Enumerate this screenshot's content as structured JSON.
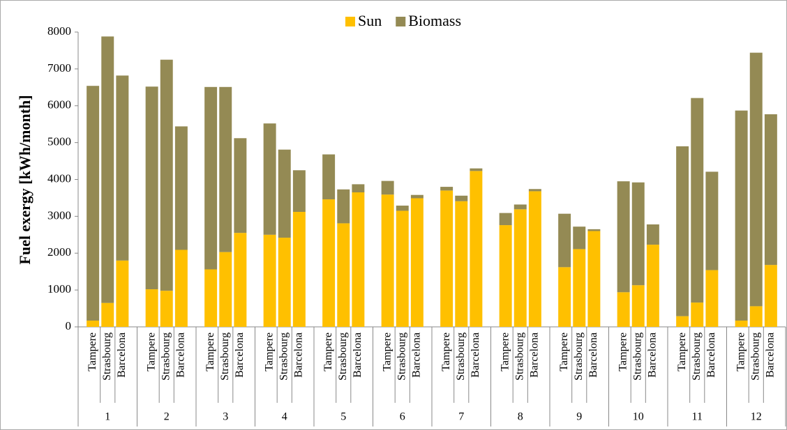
{
  "chart_data": {
    "type": "stacked_bar",
    "y_label": "Fuel exergy [kWh/month]",
    "categories": [
      "Tampere",
      "Strasbourg",
      "Barcelona",
      "Tampere",
      "Strasbourg",
      "Barcelona",
      "Tampere",
      "Strasbourg",
      "Barcelona",
      "Tampere",
      "Strasbourg",
      "Barcelona",
      "Tampere",
      "Strasbourg",
      "Barcelona",
      "Tampere",
      "Strasbourg",
      "Barcelona",
      "Tampere",
      "Strasbourg",
      "Barcelona",
      "Tampere",
      "Strasbourg",
      "Barcelona",
      "Tampere",
      "Strasbourg",
      "Barcelona",
      "Tampere",
      "Strasbourg",
      "Barcelona",
      "Tampere",
      "Strasbourg",
      "Barcelona",
      "Tampere",
      "Strasbourg",
      "Barcelona"
    ],
    "groups": [
      "1",
      "2",
      "3",
      "4",
      "5",
      "6",
      "7",
      "8",
      "9",
      "10",
      "11",
      "12"
    ],
    "series": [
      {
        "name": "Sun",
        "color": "#FFC000",
        "values": [
          170,
          650,
          1800,
          1020,
          980,
          2090,
          1560,
          2030,
          2550,
          2500,
          2420,
          3120,
          3460,
          2810,
          3650,
          3590,
          3150,
          3490,
          3700,
          3410,
          4230,
          2760,
          3190,
          3680,
          1620,
          2110,
          2600,
          940,
          1130,
          2230,
          290,
          660,
          1540,
          170,
          560,
          1680
        ]
      },
      {
        "name": "Biomass",
        "color": "#948A54",
        "values": [
          6370,
          7230,
          5020,
          5500,
          6270,
          3350,
          4950,
          4480,
          2570,
          3020,
          2390,
          1130,
          1220,
          920,
          220,
          370,
          140,
          90,
          100,
          150,
          70,
          330,
          130,
          60,
          1450,
          610,
          50,
          3010,
          2790,
          550,
          4610,
          5550,
          2670,
          5700,
          6880,
          4090
        ]
      }
    ],
    "ylim": [
      0,
      8000
    ],
    "yticks": [
      0,
      1000,
      2000,
      3000,
      4000,
      5000,
      6000,
      7000,
      8000
    ],
    "legend": "top"
  }
}
